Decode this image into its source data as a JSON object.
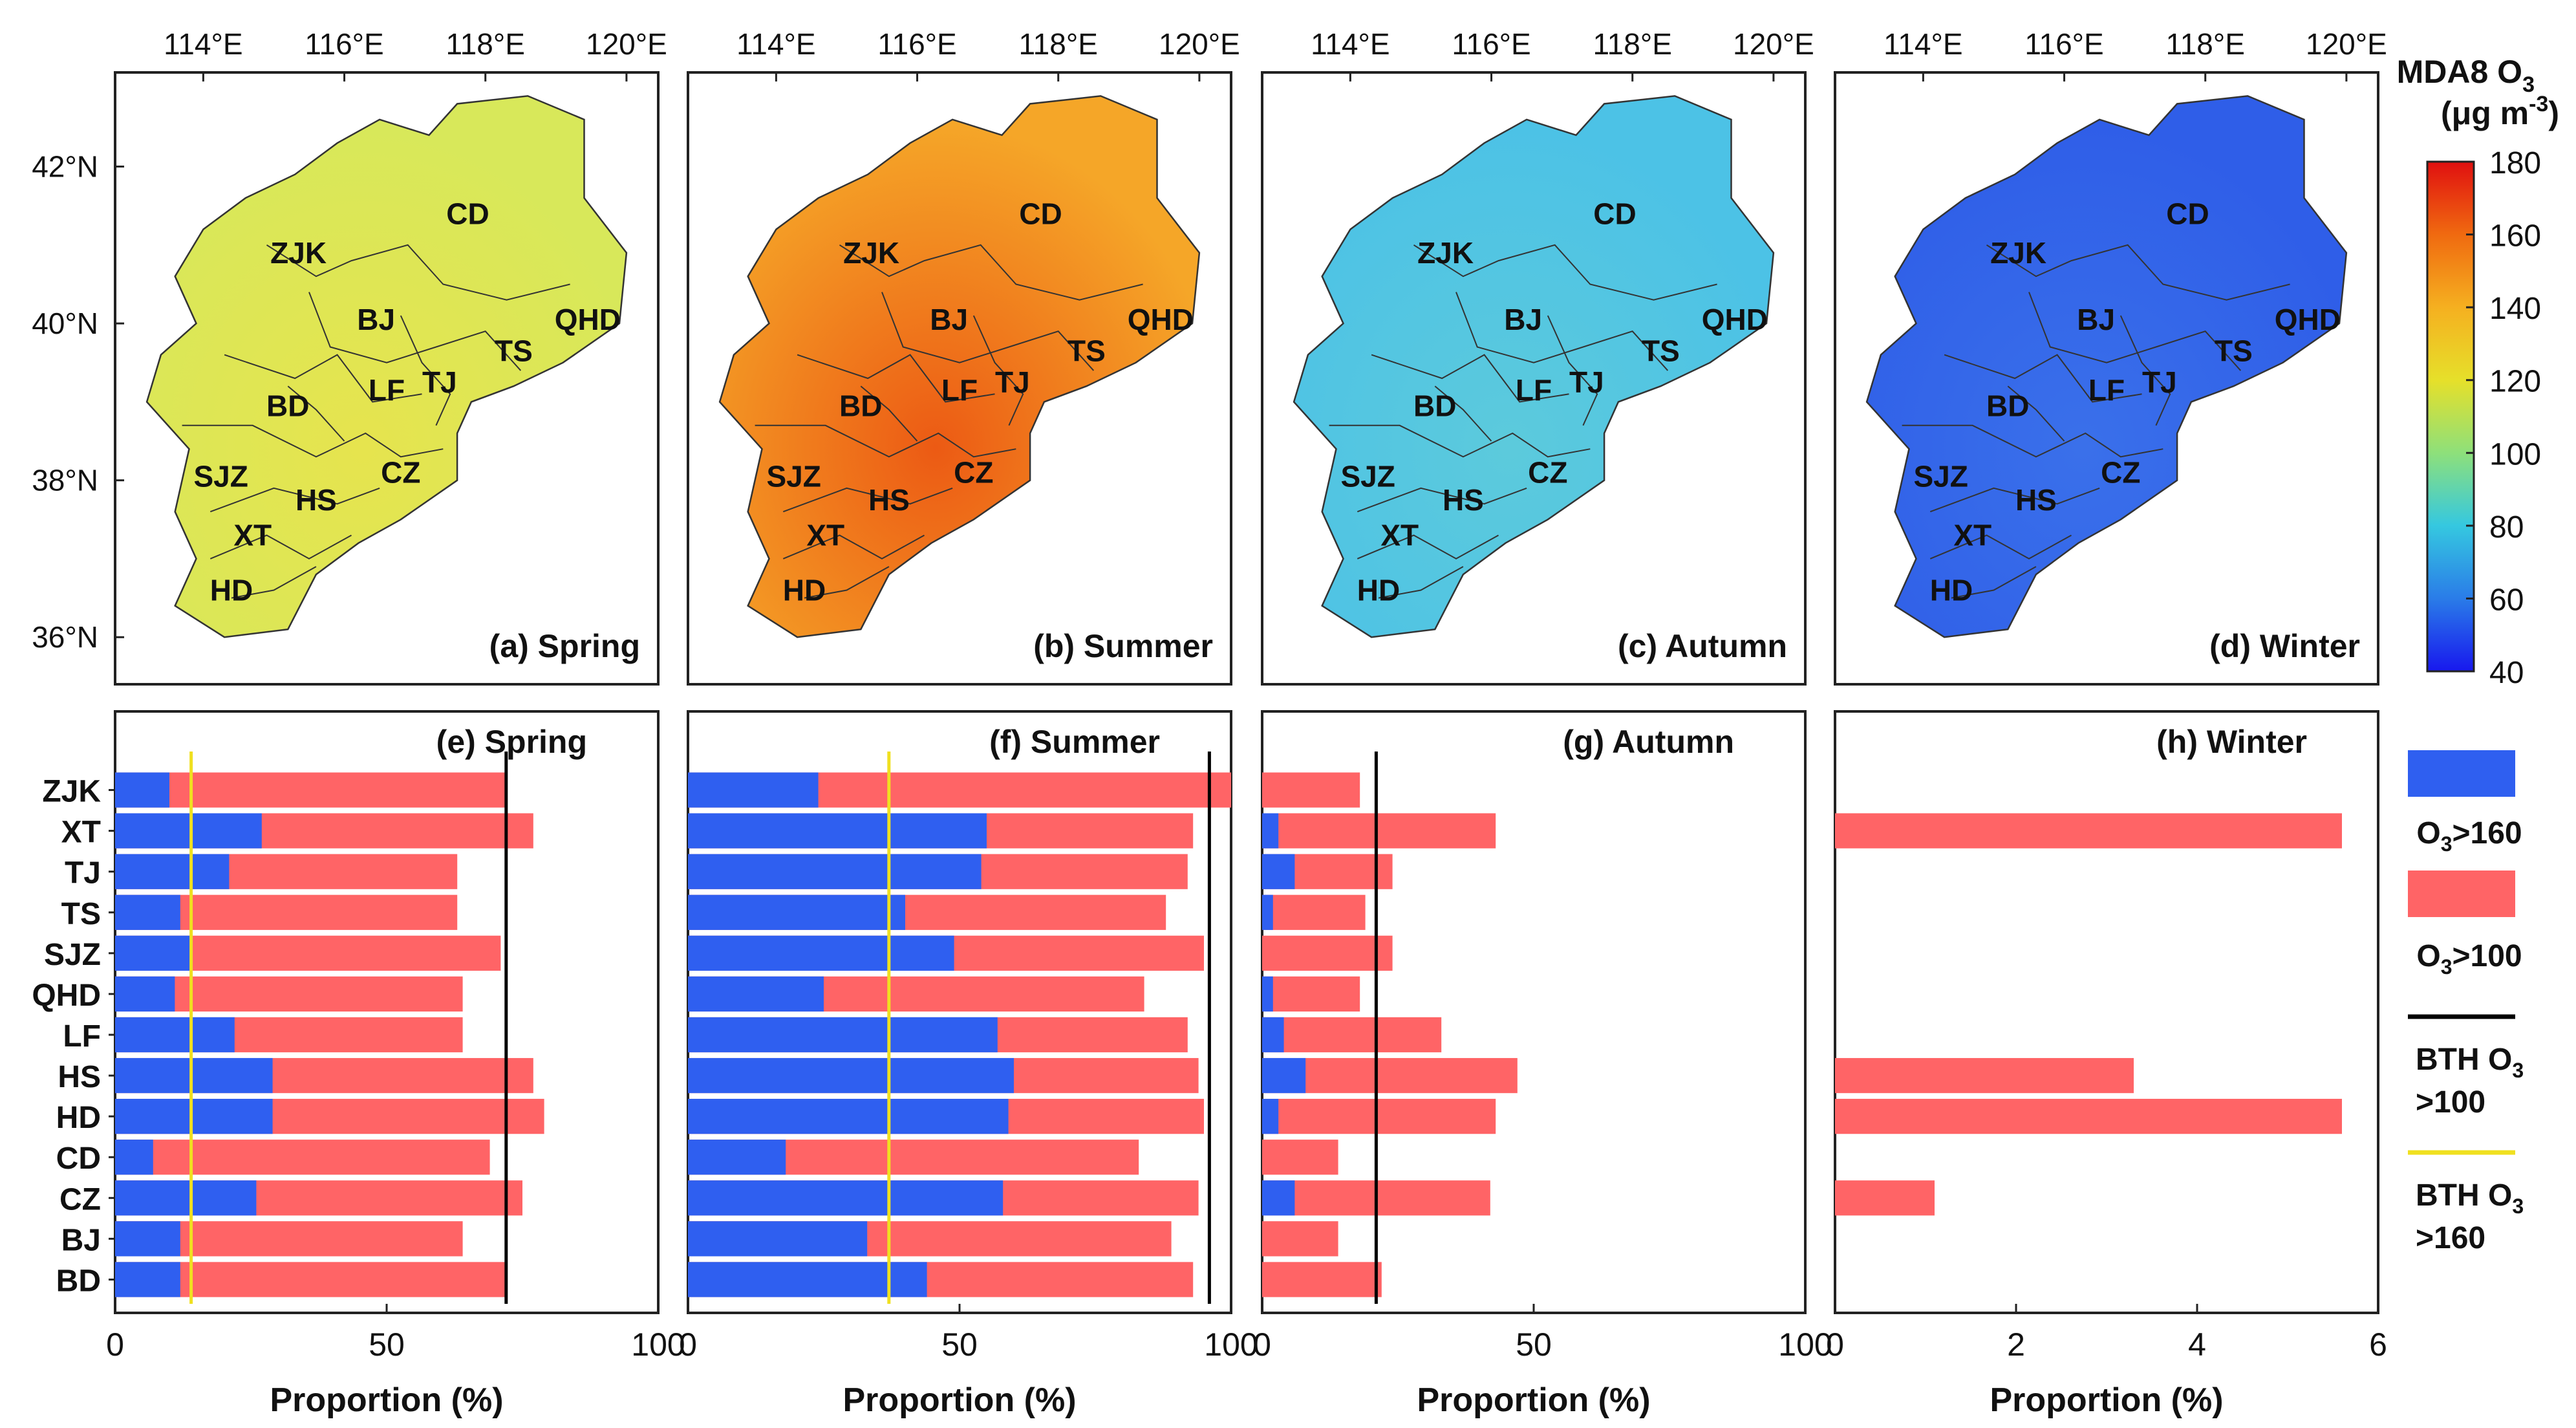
{
  "chart_data": {
    "type": "map-and-bar-figure",
    "regions": [
      "ZJK",
      "XT",
      "TJ",
      "TS",
      "SJZ",
      "QHD",
      "LF",
      "HS",
      "HD",
      "CD",
      "CZ",
      "BJ",
      "BD"
    ],
    "map_top_ticks": [
      "114°E",
      "116°E",
      "118°E",
      "120°E"
    ],
    "map_left_ticks": [
      "42°N",
      "40°N",
      "38°N",
      "36°N"
    ],
    "colorbar": {
      "title_line1": "MDA8 O",
      "title_sub1": "3",
      "title_line2": "(μg m",
      "title_sup2": "-3",
      "title_close2": ")",
      "range": [
        40,
        180
      ],
      "ticks": [
        "180",
        "160",
        "140",
        "120",
        "100",
        "80",
        "60",
        "40"
      ],
      "colors": [
        "#e01010",
        "#f06a10",
        "#f5b020",
        "#e6e02a",
        "#8ee07a",
        "#35c8e0",
        "#2a7ce8",
        "#1818ee"
      ]
    },
    "maps": [
      {
        "label": "(a) Spring",
        "season": "Spring",
        "mean": 125,
        "fill": "#d8e85a",
        "fill_hi": "#e6e44e"
      },
      {
        "label": "(b) Summer",
        "season": "Summer",
        "mean": 160,
        "fill": "#f5a628",
        "fill_hi": "#ec5a14"
      },
      {
        "label": "(c) Autumn",
        "season": "Autumn",
        "mean": 85,
        "fill": "#4cc2e6",
        "fill_hi": "#5ccadc"
      },
      {
        "label": "(d) Winter",
        "season": "Winter",
        "mean": 55,
        "fill": "#2f5ee8",
        "fill_hi": "#3a70ea"
      }
    ],
    "bar_panels": [
      {
        "label": "(e) Spring",
        "xlim": [
          0,
          100
        ],
        "xticks": [
          "0",
          "50",
          "100"
        ],
        "xlabel": "Proportion (%)",
        "gt160": [
          10,
          27,
          21,
          12,
          14,
          11,
          22,
          29,
          29,
          7,
          26,
          12,
          12
        ],
        "gt100": [
          72,
          77,
          63,
          63,
          71,
          64,
          64,
          77,
          79,
          69,
          75,
          64,
          72
        ],
        "bth_gt100": 72,
        "bth_gt160": 14
      },
      {
        "label": "(f) Summer",
        "xlim": [
          0,
          100
        ],
        "xticks": [
          "0",
          "50",
          "100"
        ],
        "xlabel": "Proportion (%)",
        "gt160": [
          24,
          55,
          54,
          40,
          49,
          25,
          57,
          60,
          59,
          18,
          58,
          33,
          44
        ],
        "gt100": [
          100,
          93,
          92,
          88,
          95,
          84,
          92,
          94,
          95,
          83,
          94,
          89,
          93
        ],
        "bth_gt100": 96,
        "bth_gt160": 37
      },
      {
        "label": "(g) Autumn",
        "xlim": [
          0,
          100
        ],
        "xticks": [
          "0",
          "50",
          "100"
        ],
        "xlabel": "Proportion (%)",
        "gt160": [
          0,
          3,
          6,
          2,
          0,
          2,
          4,
          8,
          3,
          0,
          6,
          0,
          0
        ],
        "gt100": [
          18,
          43,
          24,
          19,
          24,
          18,
          33,
          47,
          43,
          14,
          42,
          14,
          22
        ],
        "bth_gt100": 21,
        "bth_gt160": null
      },
      {
        "label": "(h) Winter",
        "xlim": [
          0,
          6
        ],
        "xticks": [
          "0",
          "2",
          "4",
          "6"
        ],
        "xlabel": "Proportion (%)",
        "gt160": [
          0,
          0,
          0,
          0,
          0,
          0,
          0,
          0,
          0,
          0,
          0,
          0,
          0
        ],
        "gt100": [
          0,
          5.6,
          0,
          0,
          0,
          0,
          0,
          3.3,
          5.6,
          0,
          1.1,
          0,
          0
        ],
        "bth_gt100": null,
        "bth_gt160": null
      }
    ],
    "legend": [
      {
        "key": "gt160",
        "text": "O",
        "sub": "3",
        "tail": ">160",
        "color": "#2f5ff0",
        "kind": "patch"
      },
      {
        "key": "gt100",
        "text": "O",
        "sub": "3",
        "tail": ">100",
        "color": "#ff6466",
        "kind": "patch"
      },
      {
        "key": "bth100",
        "line1": "BTH O",
        "sub": "3",
        "line2": ">100",
        "color": "#000000",
        "kind": "line"
      },
      {
        "key": "bth160",
        "line1": "BTH O",
        "sub": "3",
        "line2": ">160",
        "color": "#f0e020",
        "kind": "line"
      }
    ]
  }
}
